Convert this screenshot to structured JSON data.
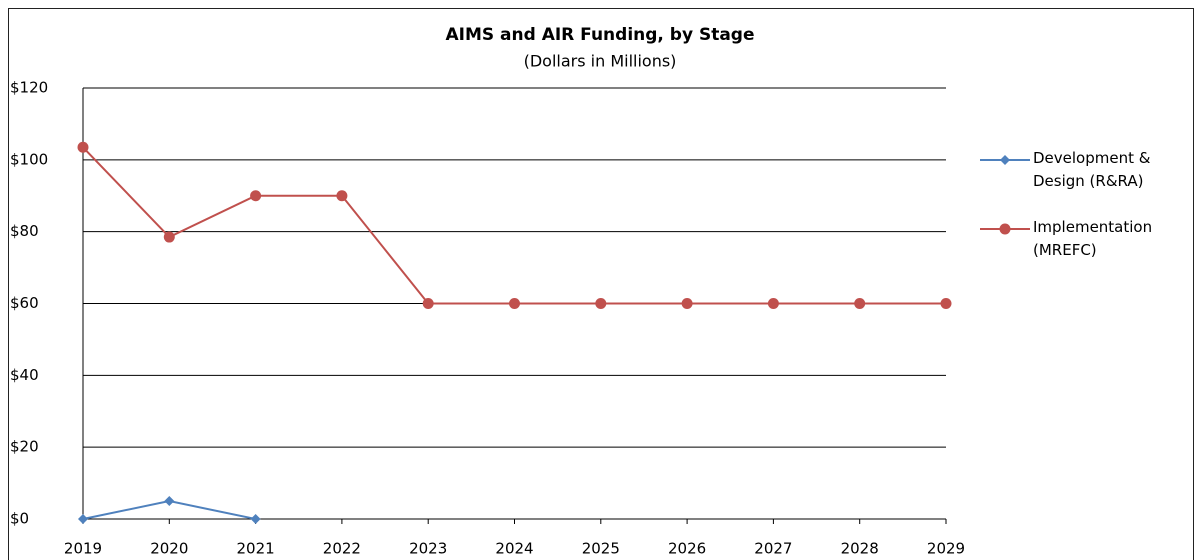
{
  "chart_data": {
    "type": "line",
    "title": "AIMS and AIR Funding, by Stage",
    "subtitle": "(Dollars in Millions)",
    "x": [
      2019,
      2020,
      2021,
      2022,
      2023,
      2024,
      2025,
      2026,
      2027,
      2028,
      2029
    ],
    "xlim": [
      2019,
      2029
    ],
    "xticks": [
      2019,
      2020,
      2021,
      2022,
      2023,
      2024,
      2025,
      2026,
      2027,
      2028,
      2029
    ],
    "ylim": [
      0,
      120
    ],
    "yticks": [
      {
        "value": 0,
        "label": "$0"
      },
      {
        "value": 20,
        "label": "$20"
      },
      {
        "value": 40,
        "label": "$40"
      },
      {
        "value": 60,
        "label": "$60"
      },
      {
        "value": 80,
        "label": "$80"
      },
      {
        "value": 100,
        "label": "$100"
      },
      {
        "value": 120,
        "label": "$120"
      }
    ],
    "grid": true,
    "legend": "right",
    "series": [
      {
        "name": "Development & Design (R&RA)",
        "color": "#4f81bd",
        "marker": "diamond",
        "values": [
          0,
          5,
          0,
          null,
          null,
          null,
          null,
          null,
          null,
          null,
          null
        ]
      },
      {
        "name": "Implementation (MREFC)",
        "color": "#c0504d",
        "marker": "circle",
        "values": [
          103.5,
          78.5,
          90,
          90,
          60,
          60,
          60,
          60,
          60,
          60,
          60
        ]
      }
    ]
  }
}
